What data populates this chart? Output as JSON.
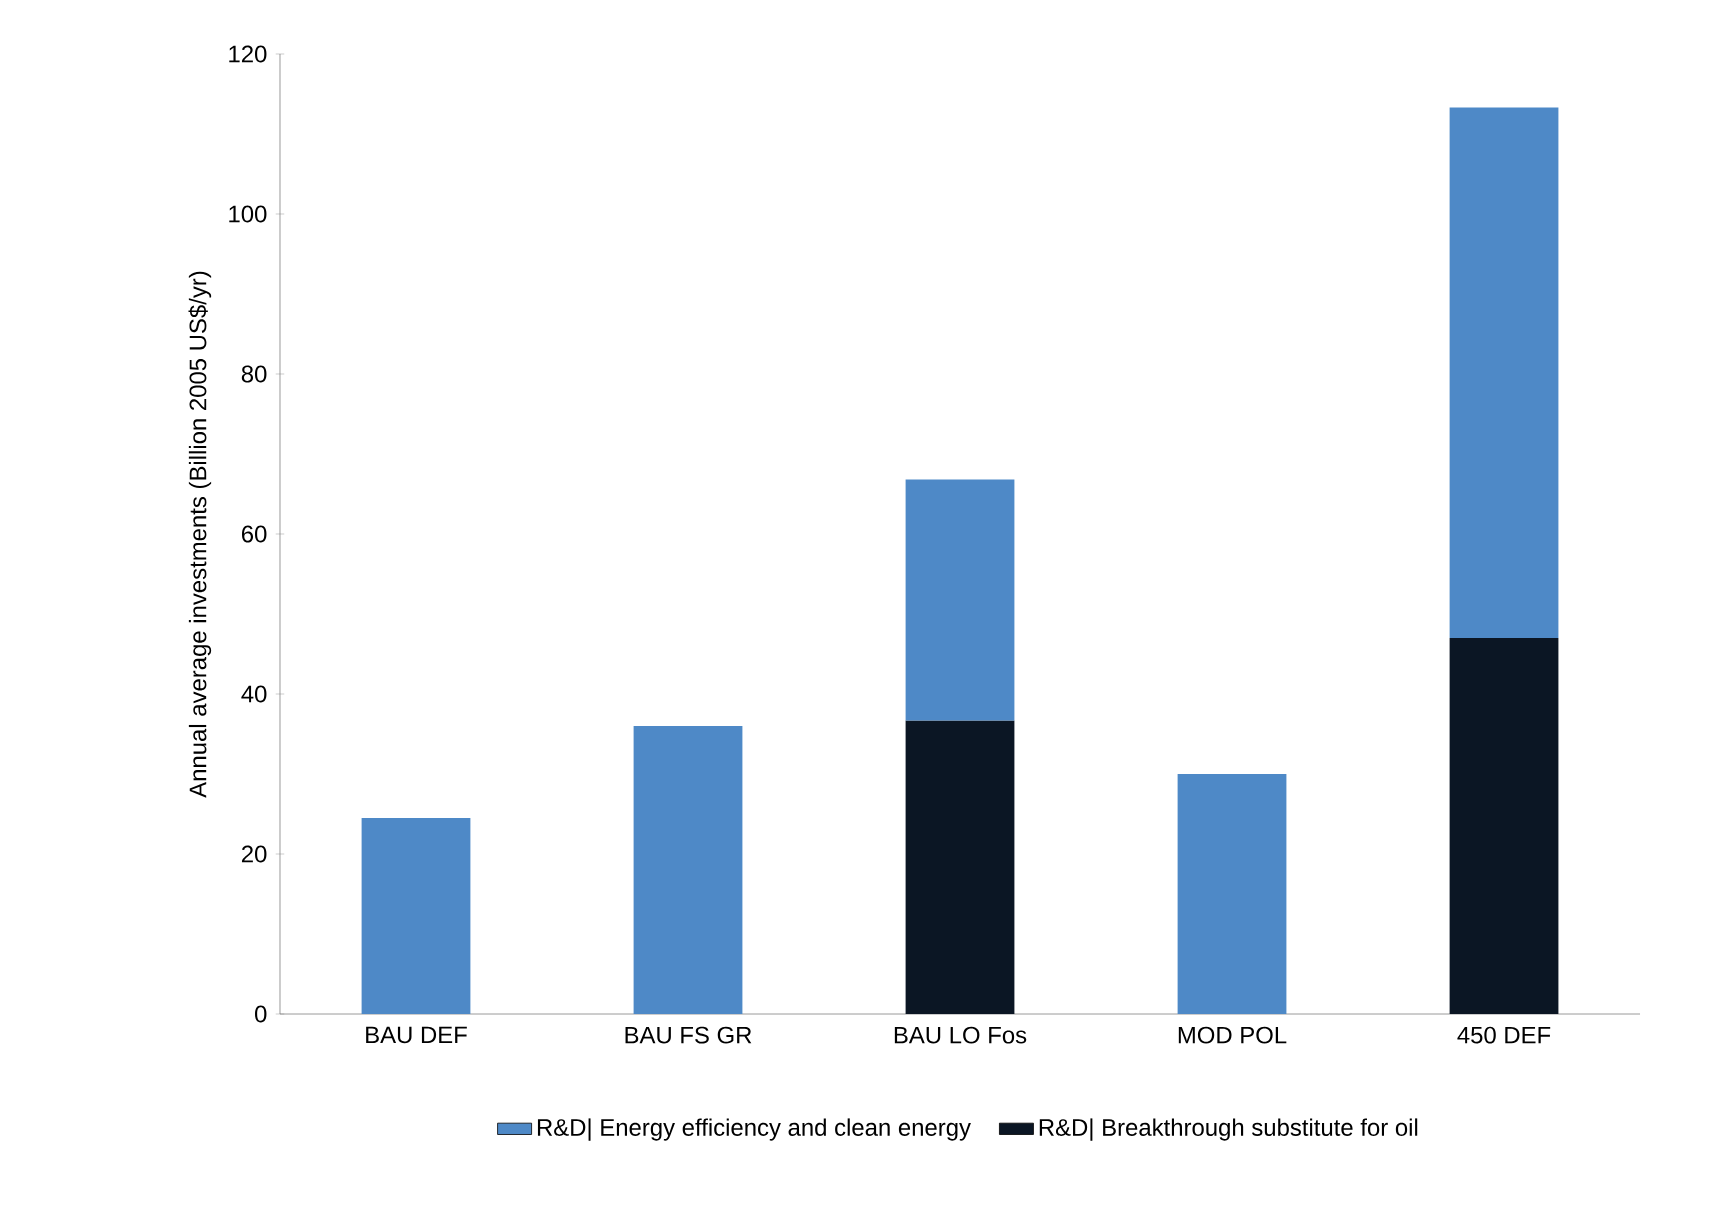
{
  "chart_data": {
    "type": "bar",
    "stacked": true,
    "ylabel": "Annual average investments (Billion 2005 US$/yr)",
    "categories": [
      "BAU DEF",
      "BAU FS GR",
      "BAU LO Fos",
      "MOD POL",
      "450 DEF"
    ],
    "series": [
      {
        "name": "R&D| Breakthrough substitute for oil",
        "color": "#0b1624",
        "values": [
          null,
          null,
          36.7,
          null,
          47
        ]
      },
      {
        "name": "R&D| Energy efficiency and clean energy",
        "color": "#4e89c7",
        "values": [
          24.5,
          36,
          30.1,
          30,
          66.3
        ]
      }
    ],
    "ylim": [
      0,
      120
    ],
    "yticks": [
      0,
      20,
      40,
      60,
      80,
      100,
      120
    ],
    "grid": false,
    "legend": "bottom"
  }
}
